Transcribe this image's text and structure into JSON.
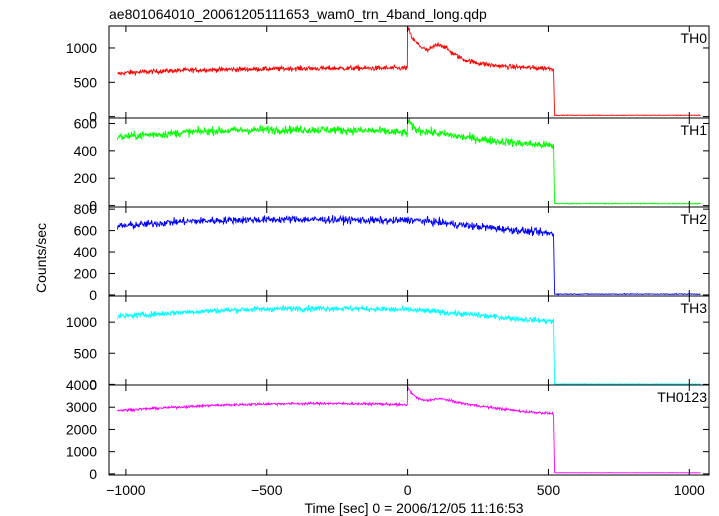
{
  "chart_data": {
    "type": "line",
    "title": "ae801064010_20061205111653_wam0_trn_4band_long.qdp",
    "xlabel": "Time [sec] 0 = 2006/12/05 11:16:53",
    "ylabel": "Counts/sec",
    "xlim": [
      -1060,
      1070
    ],
    "x_ticks": [
      -1000,
      -500,
      0,
      500,
      1000
    ],
    "x_tick_labels": [
      "−1000",
      "−500",
      "0",
      "500",
      "1000"
    ],
    "grid": false,
    "panels": [
      {
        "label": "TH0",
        "color": "#ff0000",
        "ylim": [
          -20,
          1320
        ],
        "y_ticks": [
          0,
          500,
          1000
        ],
        "series": {
          "x": [
            -1030,
            -1000,
            -800,
            -600,
            -400,
            -200,
            -100,
            -20,
            -1,
            0,
            5,
            15,
            30,
            50,
            70,
            90,
            110,
            130,
            160,
            200,
            250,
            300,
            350,
            400,
            450,
            500,
            518,
            522,
            535,
            600,
            700,
            800,
            900,
            1000,
            1040
          ],
          "y": [
            620,
            640,
            675,
            690,
            700,
            705,
            705,
            705,
            710,
            1290,
            1260,
            1150,
            1080,
            1010,
            960,
            1010,
            1060,
            1020,
            920,
            830,
            780,
            750,
            730,
            720,
            710,
            705,
            700,
            20,
            20,
            20,
            20,
            20,
            20,
            20,
            20
          ],
          "noise": 35
        }
      },
      {
        "label": "TH1",
        "color": "#00ff00",
        "ylim": [
          -10,
          640
        ],
        "y_ticks": [
          0,
          200,
          400,
          600
        ],
        "series": {
          "x": [
            -1030,
            -900,
            -700,
            -500,
            -300,
            -100,
            -10,
            -1,
            0,
            5,
            15,
            30,
            60,
            100,
            200,
            300,
            400,
            500,
            518,
            522,
            540,
            700,
            900,
            1040
          ],
          "y": [
            500,
            520,
            545,
            555,
            555,
            545,
            530,
            525,
            620,
            610,
            580,
            555,
            545,
            530,
            500,
            475,
            455,
            440,
            435,
            15,
            15,
            15,
            15,
            15
          ],
          "noise": 30
        }
      },
      {
        "label": "TH2",
        "color": "#0000ff",
        "ylim": [
          -10,
          820
        ],
        "y_ticks": [
          0,
          200,
          400,
          600,
          800
        ],
        "series": {
          "x": [
            -1030,
            -800,
            -600,
            -400,
            -200,
            -50,
            0,
            5,
            100,
            200,
            300,
            400,
            500,
            518,
            522,
            540,
            700,
            900,
            1040
          ],
          "y": [
            640,
            685,
            700,
            705,
            700,
            690,
            700,
            700,
            680,
            650,
            625,
            600,
            575,
            570,
            8,
            8,
            8,
            8,
            8
          ],
          "noise": 35
        }
      },
      {
        "label": "TH3",
        "color": "#00ffff",
        "ylim": [
          -10,
          1420
        ],
        "y_ticks": [
          0,
          500,
          1000
        ],
        "series": {
          "x": [
            -1030,
            -800,
            -600,
            -400,
            -200,
            0,
            100,
            200,
            300,
            400,
            500,
            518,
            522,
            540,
            700,
            900,
            1040
          ],
          "y": [
            1090,
            1160,
            1200,
            1220,
            1220,
            1200,
            1170,
            1130,
            1090,
            1050,
            1020,
            1010,
            5,
            5,
            5,
            5,
            5
          ],
          "noise": 45
        }
      },
      {
        "label": "TH0123",
        "color": "#ff00ff",
        "ylim": [
          -50,
          4000
        ],
        "y_ticks": [
          0,
          1000,
          2000,
          3000,
          4000
        ],
        "series": {
          "x": [
            -1030,
            -900,
            -700,
            -500,
            -300,
            -100,
            -10,
            -1,
            0,
            5,
            20,
            40,
            60,
            80,
            100,
            130,
            160,
            200,
            300,
            400,
            500,
            518,
            522,
            540,
            700,
            900,
            1040
          ],
          "y": [
            2850,
            2950,
            3080,
            3150,
            3170,
            3150,
            3100,
            3110,
            3850,
            3800,
            3550,
            3380,
            3300,
            3320,
            3380,
            3360,
            3270,
            3160,
            2980,
            2820,
            2730,
            2710,
            50,
            50,
            50,
            50,
            50
          ],
          "noise": 55
        }
      }
    ]
  }
}
